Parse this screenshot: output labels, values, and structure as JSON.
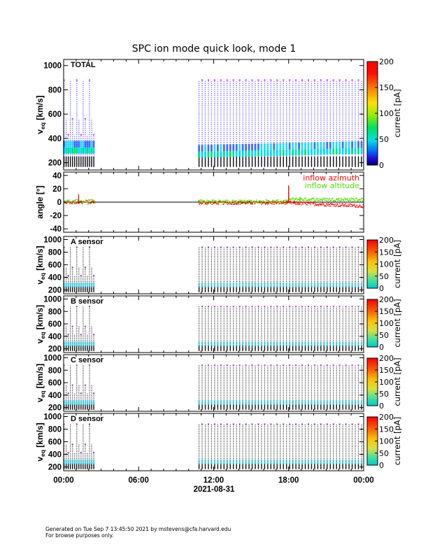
{
  "chart_data": {
    "type": "spectrogram",
    "title": "SPC ion mode quick look, mode 1",
    "x_axis": {
      "ticks": [
        "00:00",
        "06:00",
        "12:00",
        "18:00",
        "00:00"
      ],
      "tick_hours": [
        0,
        6,
        12,
        18,
        24
      ],
      "range_hours": [
        0,
        24
      ],
      "date_label": "2021-08-31"
    },
    "data_coverage_hours": [
      [
        0.0,
        2.5
      ],
      [
        10.8,
        24.0
      ]
    ],
    "panels": [
      {
        "id": "total",
        "type": "spectrogram",
        "label": "TOTAL",
        "ylabel": "v_eq [km/s]",
        "ylabel_main": "v",
        "ylabel_sub": "eq",
        "ylabel_units": "[km/s]",
        "ylim": [
          140,
          1050
        ],
        "yticks": [
          200,
          400,
          600,
          800,
          1000
        ],
        "colorbar": {
          "label": "current [pA]",
          "range": [
            0,
            200
          ],
          "ticks": [
            0,
            50,
            100,
            150,
            200
          ],
          "colormap": "rainbow"
        }
      },
      {
        "id": "angle",
        "type": "line",
        "ylabel": "angle [°]",
        "ylim": [
          -45,
          45
        ],
        "yticks": [
          -40,
          -20,
          0,
          20,
          40
        ],
        "series": [
          {
            "name": "inflow azimuth",
            "color": "#ff0000"
          },
          {
            "name": "inflow altitude",
            "color": "#55dd00"
          }
        ]
      },
      {
        "id": "A",
        "type": "spectrogram",
        "label": "A sensor",
        "ylabel": "v_eq [km/s]",
        "ylabel_main": "v",
        "ylabel_sub": "eq",
        "ylabel_units": "[km/s]",
        "ylim": [
          140,
          1050
        ],
        "yticks": [
          200,
          400,
          600,
          800,
          1000
        ],
        "colorbar": {
          "label": "current [pA]",
          "range": [
            0,
            200
          ],
          "ticks": [
            0,
            50,
            100,
            150,
            200
          ],
          "colormap": "cyan-yellow-red"
        }
      },
      {
        "id": "B",
        "type": "spectrogram",
        "label": "B sensor",
        "ylabel": "v_eq [km/s]",
        "ylabel_main": "v",
        "ylabel_sub": "eq",
        "ylabel_units": "[km/s]",
        "ylim": [
          140,
          1050
        ],
        "yticks": [
          200,
          400,
          600,
          800,
          1000
        ],
        "colorbar": {
          "label": "current [pA]",
          "range": [
            0,
            200
          ],
          "ticks": [
            0,
            50,
            100,
            150,
            200
          ],
          "colormap": "cyan-yellow-red"
        }
      },
      {
        "id": "C",
        "type": "spectrogram",
        "label": "C sensor",
        "ylabel": "v_eq [km/s]",
        "ylabel_main": "v",
        "ylabel_sub": "eq",
        "ylabel_units": "[km/s]",
        "ylim": [
          140,
          1050
        ],
        "yticks": [
          200,
          400,
          600,
          800,
          1000
        ],
        "colorbar": {
          "label": "current [pA]",
          "range": [
            0,
            200
          ],
          "ticks": [
            0,
            50,
            100,
            150,
            200
          ],
          "colormap": "cyan-yellow-red"
        }
      },
      {
        "id": "D",
        "type": "spectrogram",
        "label": "D sensor",
        "ylabel": "v_eq [km/s]",
        "ylabel_main": "v",
        "ylabel_sub": "eq",
        "ylabel_units": "[km/s]",
        "ylim": [
          140,
          1050
        ],
        "yticks": [
          200,
          400,
          600,
          800,
          1000
        ],
        "colorbar": {
          "label": "current [pA]",
          "range": [
            0,
            200
          ],
          "ticks": [
            0,
            50,
            100,
            150,
            200
          ],
          "colormap": "cyan-yellow-red"
        }
      }
    ]
  },
  "footer": {
    "line1": "Generated on Tue Sep  7 13:45:50 2021 by mstevens@cfa.harvard.edu",
    "line2": "For browse purposes only."
  },
  "colors": {
    "azimuth": "#ff0000",
    "altitude": "#55dd00",
    "axes": "#000000"
  }
}
